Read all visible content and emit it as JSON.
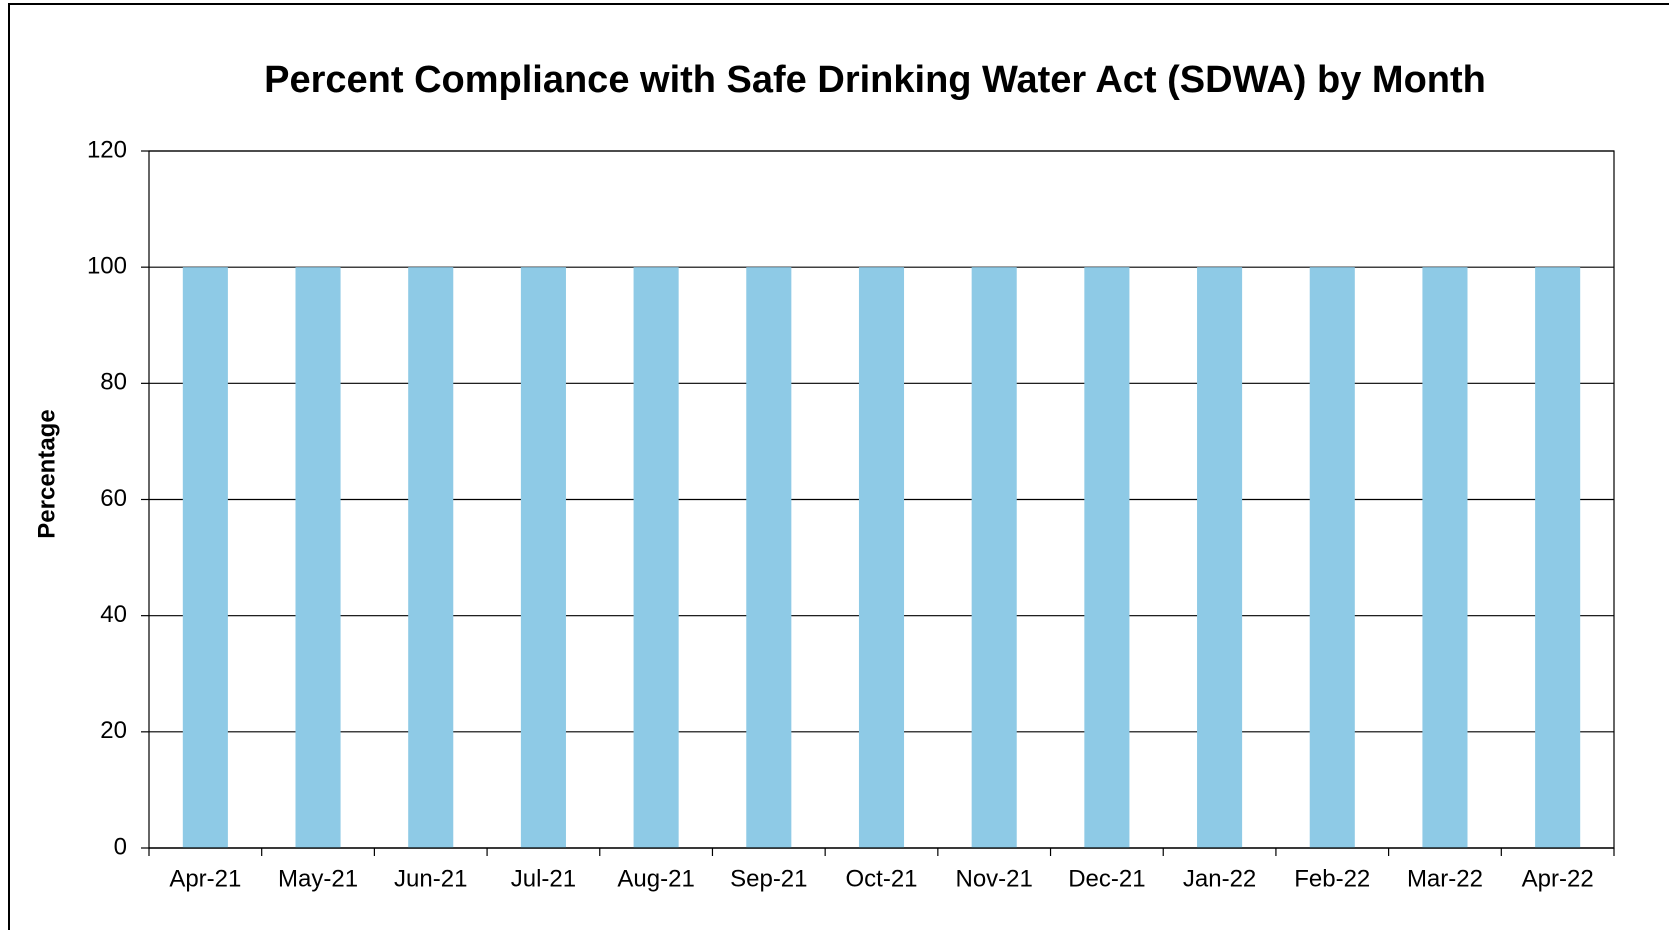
{
  "chart_data": {
    "type": "bar",
    "title": "Percent Compliance with Safe Drinking Water Act (SDWA) by Month",
    "y_label": "Percentage",
    "categories": [
      "Apr-21",
      "May-21",
      "Jun-21",
      "Jul-21",
      "Aug-21",
      "Sep-21",
      "Oct-21",
      "Nov-21",
      "Dec-21",
      "Jan-22",
      "Feb-22",
      "Mar-22",
      "Apr-22"
    ],
    "values": [
      100,
      100,
      100,
      100,
      100,
      100,
      100,
      100,
      100,
      100,
      100,
      100,
      100
    ],
    "color": "#8ecae6",
    "ylim": [
      0,
      120
    ],
    "yticks": [
      0,
      20,
      40,
      60,
      80,
      100,
      120
    ],
    "grid": true
  }
}
